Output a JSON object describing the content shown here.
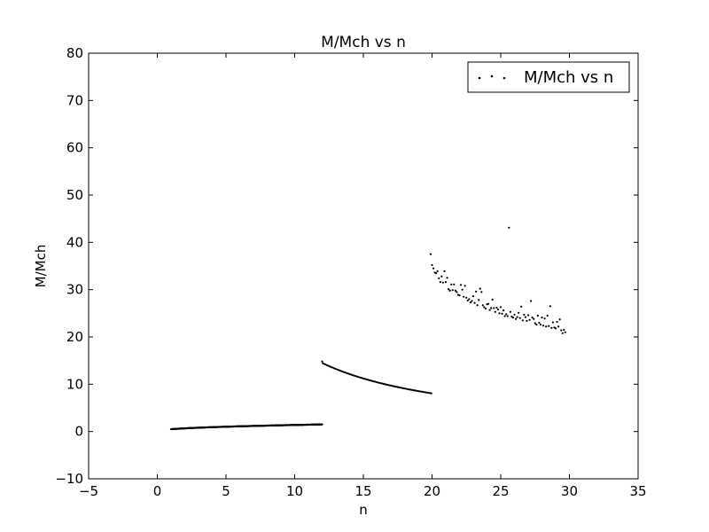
{
  "chart_data": {
    "type": "scatter",
    "title": "M/Mch vs n",
    "xlabel": "n",
    "ylabel": "M/Mch",
    "xlim": [
      -5,
      35
    ],
    "ylim": [
      -10,
      80
    ],
    "xticks": [
      -5,
      0,
      5,
      10,
      15,
      20,
      25,
      30,
      35
    ],
    "yticks": [
      -10,
      0,
      10,
      20,
      30,
      40,
      50,
      60,
      70,
      80
    ],
    "xtick_labels": [
      "−5",
      "0",
      "5",
      "10",
      "15",
      "20",
      "25",
      "30",
      "35"
    ],
    "ytick_labels": [
      "−10",
      "0",
      "10",
      "20",
      "30",
      "40",
      "50",
      "60",
      "70",
      "80"
    ],
    "grid": false,
    "legend": {
      "position": "top-right",
      "entries": [
        "M/Mch vs n"
      ]
    },
    "marker_color": "#000000",
    "series": [
      {
        "name": "M/Mch vs n",
        "segments": [
          {
            "x_start": 1.0,
            "x_end": 12.0,
            "model": "1.5*(x/12)^0.45",
            "density": "dense"
          },
          {
            "x_start": 12.0,
            "x_end": 20.0,
            "model": "14.5*(x/12)^-1.15",
            "density": "dense"
          }
        ],
        "points": [
          [
            12.0,
            14.8
          ],
          [
            19.9,
            37.5
          ],
          [
            20.0,
            35.2
          ],
          [
            20.1,
            34.5
          ],
          [
            20.2,
            33.6
          ],
          [
            20.3,
            33.5
          ],
          [
            20.4,
            33.9
          ],
          [
            20.5,
            32.4
          ],
          [
            20.6,
            31.6
          ],
          [
            20.7,
            32.8
          ],
          [
            20.8,
            31.5
          ],
          [
            20.9,
            33.9
          ],
          [
            21.0,
            31.6
          ],
          [
            21.1,
            32.5
          ],
          [
            21.2,
            30.1
          ],
          [
            21.3,
            29.8
          ],
          [
            21.4,
            31.1
          ],
          [
            21.5,
            29.9
          ],
          [
            21.6,
            31.1
          ],
          [
            21.7,
            29.8
          ],
          [
            21.8,
            29.5
          ],
          [
            21.9,
            28.9
          ],
          [
            22.0,
            28.8
          ],
          [
            22.1,
            31.0
          ],
          [
            22.2,
            30.0
          ],
          [
            22.3,
            28.5
          ],
          [
            22.4,
            30.8
          ],
          [
            22.5,
            28.3
          ],
          [
            22.6,
            27.7
          ],
          [
            22.7,
            28.0
          ],
          [
            22.8,
            27.3
          ],
          [
            22.9,
            27.6
          ],
          [
            23.0,
            28.6
          ],
          [
            23.1,
            27.2
          ],
          [
            23.2,
            29.6
          ],
          [
            23.3,
            26.7
          ],
          [
            23.4,
            27.8
          ],
          [
            23.5,
            30.2
          ],
          [
            23.6,
            29.5
          ],
          [
            23.7,
            26.7
          ],
          [
            23.8,
            26.3
          ],
          [
            23.9,
            26.0
          ],
          [
            24.0,
            26.9
          ],
          [
            24.1,
            27.0
          ],
          [
            24.2,
            25.7
          ],
          [
            24.3,
            26.1
          ],
          [
            24.4,
            27.9
          ],
          [
            24.5,
            26.1
          ],
          [
            24.6,
            25.3
          ],
          [
            24.7,
            26.2
          ],
          [
            24.8,
            25.8
          ],
          [
            24.9,
            25.0
          ],
          [
            25.0,
            26.3
          ],
          [
            25.1,
            24.9
          ],
          [
            25.2,
            25.6
          ],
          [
            25.3,
            24.4
          ],
          [
            25.4,
            24.8
          ],
          [
            25.5,
            24.4
          ],
          [
            25.6,
            43.1
          ],
          [
            25.7,
            25.3
          ],
          [
            25.8,
            24.3
          ],
          [
            25.9,
            24.1
          ],
          [
            26.0,
            24.7
          ],
          [
            26.1,
            23.8
          ],
          [
            26.2,
            24.2
          ],
          [
            26.3,
            25.1
          ],
          [
            26.4,
            24.0
          ],
          [
            26.5,
            26.4
          ],
          [
            26.6,
            23.5
          ],
          [
            26.7,
            24.7
          ],
          [
            26.8,
            24.2
          ],
          [
            26.9,
            23.4
          ],
          [
            27.0,
            24.6
          ],
          [
            27.1,
            23.6
          ],
          [
            27.2,
            27.6
          ],
          [
            27.3,
            24.1
          ],
          [
            27.4,
            23.8
          ],
          [
            27.5,
            22.9
          ],
          [
            27.6,
            22.6
          ],
          [
            27.7,
            24.5
          ],
          [
            27.8,
            23.0
          ],
          [
            27.9,
            22.6
          ],
          [
            28.0,
            24.1
          ],
          [
            28.1,
            22.4
          ],
          [
            28.2,
            23.9
          ],
          [
            28.3,
            22.2
          ],
          [
            28.4,
            24.5
          ],
          [
            28.5,
            22.3
          ],
          [
            28.6,
            26.5
          ],
          [
            28.7,
            21.9
          ],
          [
            28.8,
            23.1
          ],
          [
            28.9,
            22.0
          ],
          [
            29.0,
            21.8
          ],
          [
            29.1,
            23.2
          ],
          [
            29.2,
            22.2
          ],
          [
            29.3,
            23.7
          ],
          [
            29.4,
            21.4
          ],
          [
            29.5,
            20.8
          ],
          [
            29.6,
            21.5
          ],
          [
            29.7,
            21.0
          ]
        ]
      }
    ]
  }
}
